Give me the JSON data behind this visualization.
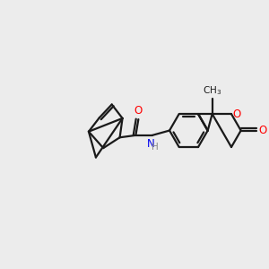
{
  "background_color": "#ececec",
  "bond_color": "#1a1a1a",
  "bond_width": 1.6,
  "atom_colors": {
    "O": "#ff0000",
    "N": "#0000ee",
    "C": "#1a1a1a"
  },
  "font_size_atom": 8.5,
  "figsize": [
    3.0,
    3.0
  ],
  "dpi": 100
}
